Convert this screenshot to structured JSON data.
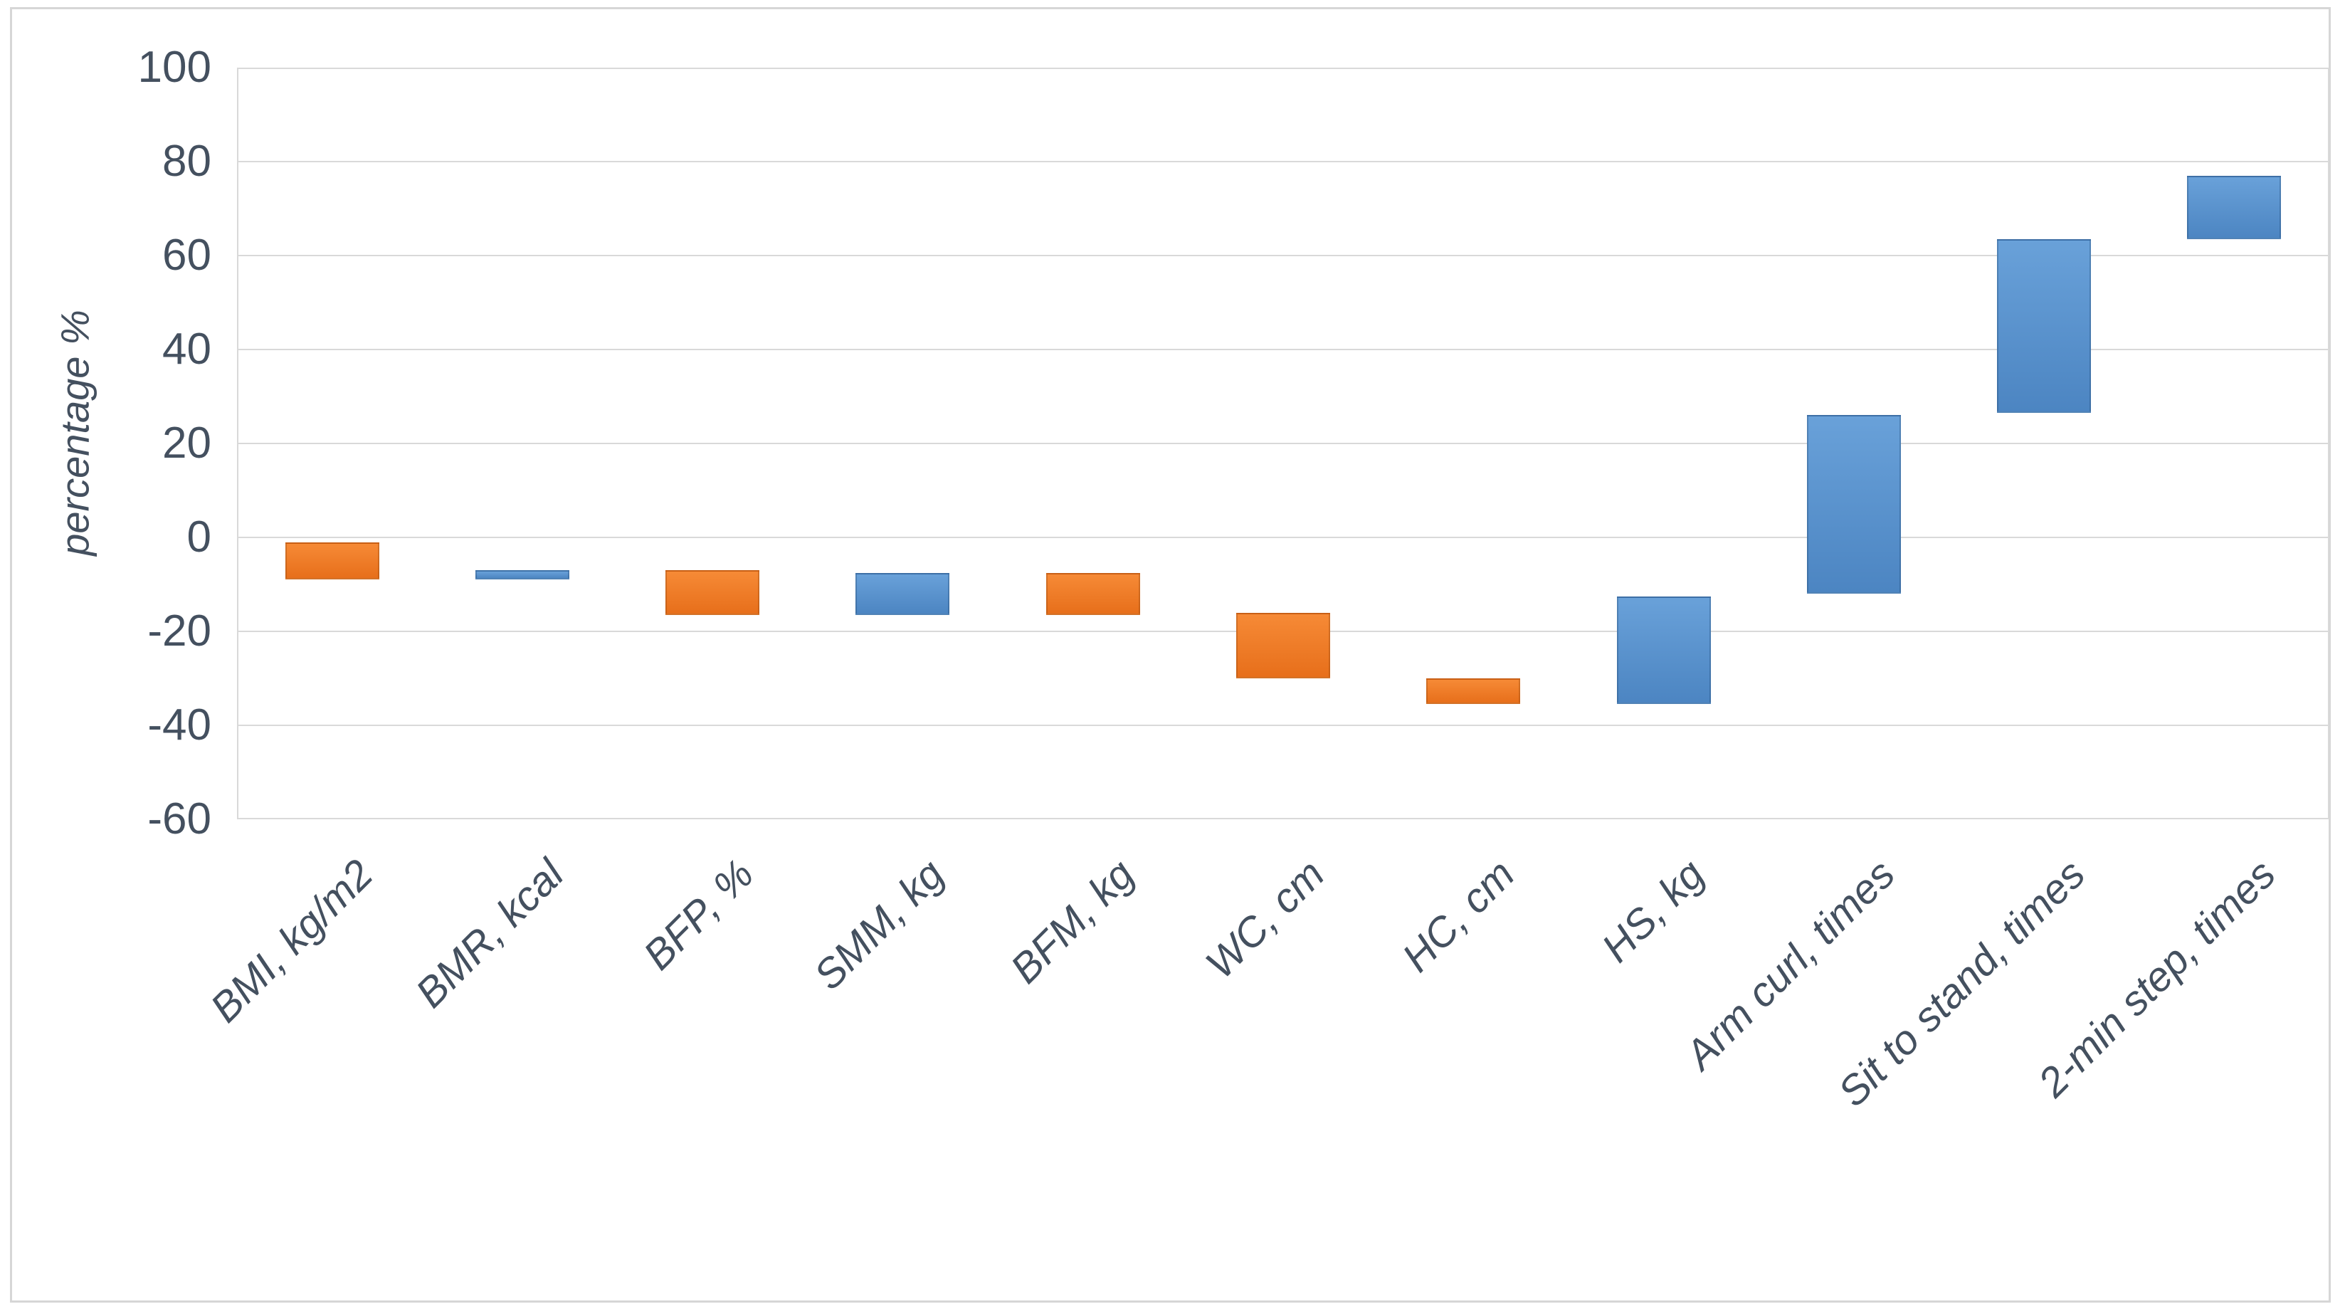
{
  "figure": {
    "frame_color": "#d6d6d6",
    "background": "#ffffff"
  },
  "chart_data": {
    "type": "bar",
    "subtype": "floating-range-column",
    "title": "",
    "xlabel": "",
    "ylabel": "percentage %",
    "ylim": [
      -60,
      100
    ],
    "ytick_step": 20,
    "yticks": [
      100,
      80,
      60,
      40,
      20,
      0,
      -20,
      -40,
      -60
    ],
    "grid": true,
    "legend": false,
    "axis_text_color": "#44505f",
    "gridline_color": "#d9d9d9",
    "categories": [
      "BMI, kg/m2",
      "BMR, kcal",
      "BFP, %",
      "SMM, kg",
      "BFM, kg",
      "WC, cm",
      "HC, cm",
      "HS, kg",
      "Arm curl, times",
      "Sit to stand, times",
      "2-min step, times"
    ],
    "bars": [
      {
        "category": "BMI, kg/m2",
        "low": -9,
        "high": -1,
        "color": "orange"
      },
      {
        "category": "BMR, kcal",
        "low": -9,
        "high": -7,
        "color": "blue"
      },
      {
        "category": "BFP, %",
        "low": -16.5,
        "high": -7,
        "color": "orange"
      },
      {
        "category": "SMM, kg",
        "low": -16.5,
        "high": -7.5,
        "color": "blue"
      },
      {
        "category": "BFM, kg",
        "low": -16.5,
        "high": -7.5,
        "color": "orange"
      },
      {
        "category": "WC, cm",
        "low": -30,
        "high": -16,
        "color": "orange"
      },
      {
        "category": "HC, cm",
        "low": -35.5,
        "high": -30,
        "color": "orange"
      },
      {
        "category": "HS, kg",
        "low": -35.5,
        "high": -12.5,
        "color": "blue"
      },
      {
        "category": "Arm curl, times",
        "low": -12,
        "high": 26,
        "color": "blue"
      },
      {
        "category": "Sit to stand, times",
        "low": 26.5,
        "high": 63.5,
        "color": "blue"
      },
      {
        "category": "2-min step, times",
        "low": 63.5,
        "high": 77,
        "color": "blue"
      }
    ],
    "colors": {
      "orange": {
        "fill": "#ED7D31",
        "light": "#F68A36",
        "dark": "#E76F1B",
        "border": "rgba(130,58,10,0.30)"
      },
      "blue": {
        "fill": "#5B95D1",
        "light": "#69A1D9",
        "dark": "#4C85C2",
        "border": "rgba(28,62,104,0.30)"
      }
    }
  }
}
